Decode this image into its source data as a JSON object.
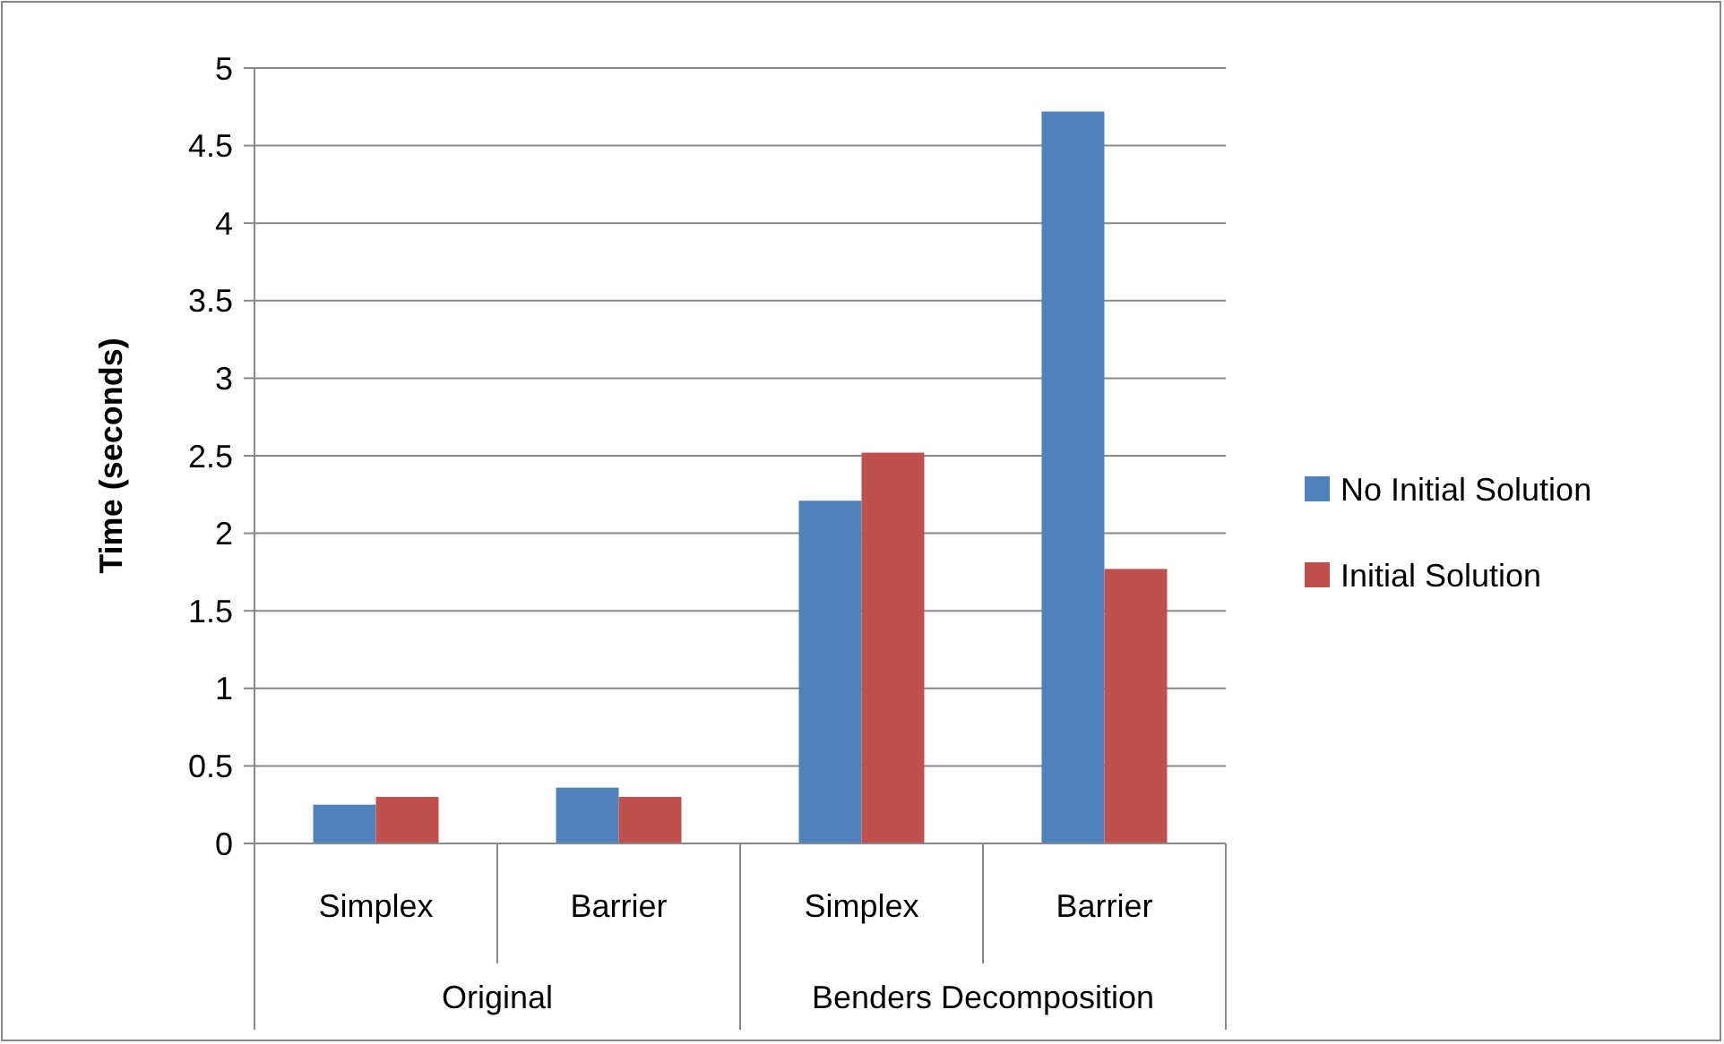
{
  "chart_data": {
    "type": "bar",
    "ylabel": "Time (seconds)",
    "categories": [
      "Simplex",
      "Barrier",
      "Simplex",
      "Barrier"
    ],
    "annotations": [
      "Original",
      "Benders Decomposition"
    ],
    "series": [
      {
        "name": "No Initial Solution",
        "color": "#4f81bd",
        "values": [
          0.25,
          0.36,
          2.21,
          4.72
        ]
      },
      {
        "name": "Initial Solution",
        "color": "#c0504d",
        "values": [
          0.3,
          0.3,
          2.52,
          1.77
        ]
      }
    ],
    "ylim": [
      0,
      5
    ],
    "yticks": [
      0,
      0.5,
      1,
      1.5,
      2,
      2.5,
      3,
      3.5,
      4,
      4.5,
      5
    ],
    "grid": "y",
    "legend": "right"
  }
}
